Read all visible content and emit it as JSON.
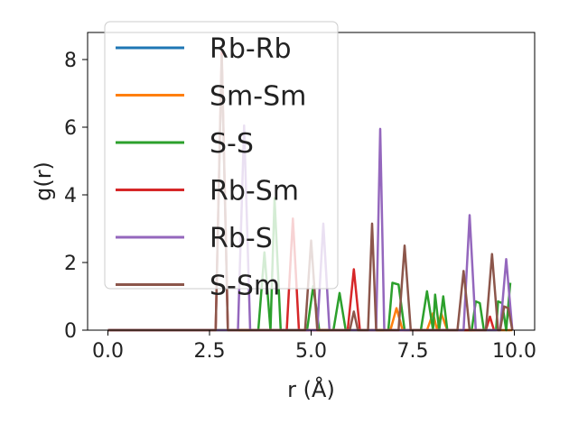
{
  "chart_data": {
    "type": "line",
    "xlabel": "r (Å)",
    "ylabel": "g(r)",
    "xlim": [
      -0.5,
      10.5
    ],
    "ylim": [
      0,
      8.8
    ],
    "xticks": [
      0.0,
      2.5,
      5.0,
      7.5,
      10.0
    ],
    "xtick_labels": [
      "0.0",
      "2.5",
      "5.0",
      "7.5",
      "10.0"
    ],
    "yticks": [
      0,
      2,
      4,
      6,
      8
    ],
    "ytick_labels": [
      "0",
      "2",
      "4",
      "6",
      "8"
    ],
    "grid": false,
    "legend_position": "top-left",
    "series": [
      {
        "name": "Rb-Rb",
        "color": "#1f77b4",
        "x": [
          0,
          9.9
        ],
        "y": [
          0,
          0
        ]
      },
      {
        "name": "Sm-Sm",
        "color": "#ff7f0e",
        "x": [
          0,
          6.95,
          7.1,
          7.25,
          7.85,
          8.0,
          8.1,
          8.2,
          8.35,
          9.95
        ],
        "y": [
          0,
          0,
          0.65,
          0,
          0,
          0.5,
          0,
          0.5,
          0,
          0
        ]
      },
      {
        "name": "S-S",
        "color": "#2ca02c",
        "x": [
          0,
          3.7,
          3.85,
          4.0,
          4.1,
          4.25,
          4.9,
          5.05,
          5.2,
          5.55,
          5.7,
          5.85,
          6.9,
          7.0,
          7.15,
          7.3,
          7.7,
          7.85,
          8.0,
          8.05,
          8.15,
          8.25,
          8.35,
          8.95,
          9.05,
          9.15,
          9.25,
          9.35,
          9.55,
          9.6,
          9.7,
          9.8,
          9.9
        ],
        "y": [
          0,
          0,
          2.3,
          0,
          3.9,
          0,
          0,
          1.3,
          0,
          0,
          1.1,
          0,
          0,
          1.4,
          1.35,
          0,
          0,
          1.15,
          0,
          1.05,
          0,
          1.0,
          0,
          0,
          0.85,
          0.8,
          0,
          0,
          0,
          0.85,
          0.8,
          0,
          1.4
        ]
      },
      {
        "name": "Rb-Sm",
        "color": "#d62728",
        "x": [
          0,
          2.65,
          2.8,
          2.95,
          4.4,
          4.55,
          4.7,
          5.9,
          6.05,
          6.2,
          9.3,
          9.4,
          9.5
        ],
        "y": [
          0,
          0,
          8.25,
          0,
          0,
          3.3,
          0,
          0,
          1.8,
          0,
          0,
          0.4,
          0
        ]
      },
      {
        "name": "Rb-S",
        "color": "#9467bd",
        "x": [
          0,
          3.2,
          3.35,
          3.5,
          5.15,
          5.3,
          5.45,
          6.5,
          6.6,
          6.7,
          6.8,
          8.75,
          8.9,
          9.05,
          9.65,
          9.8,
          9.95
        ],
        "y": [
          0,
          0,
          6.05,
          0,
          0,
          3.15,
          0,
          0,
          0,
          5.95,
          0,
          0,
          3.4,
          0,
          0,
          2.1,
          0
        ]
      },
      {
        "name": "S-Sm",
        "color": "#8c564b",
        "x": [
          0,
          2.65,
          2.8,
          2.95,
          4.85,
          5.0,
          5.15,
          5.95,
          6.05,
          6.15,
          6.4,
          6.5,
          6.6,
          7.15,
          7.3,
          7.45,
          8.6,
          8.75,
          8.9,
          9.3,
          9.45,
          9.6,
          9.65,
          9.75,
          9.85,
          9.95
        ],
        "y": [
          0,
          0,
          8.1,
          0,
          0,
          2.65,
          0,
          0,
          0.55,
          0,
          0,
          3.15,
          0,
          0,
          2.5,
          0,
          0,
          1.75,
          0,
          0,
          2.25,
          0,
          0,
          0.7,
          0.65,
          0
        ]
      }
    ]
  }
}
